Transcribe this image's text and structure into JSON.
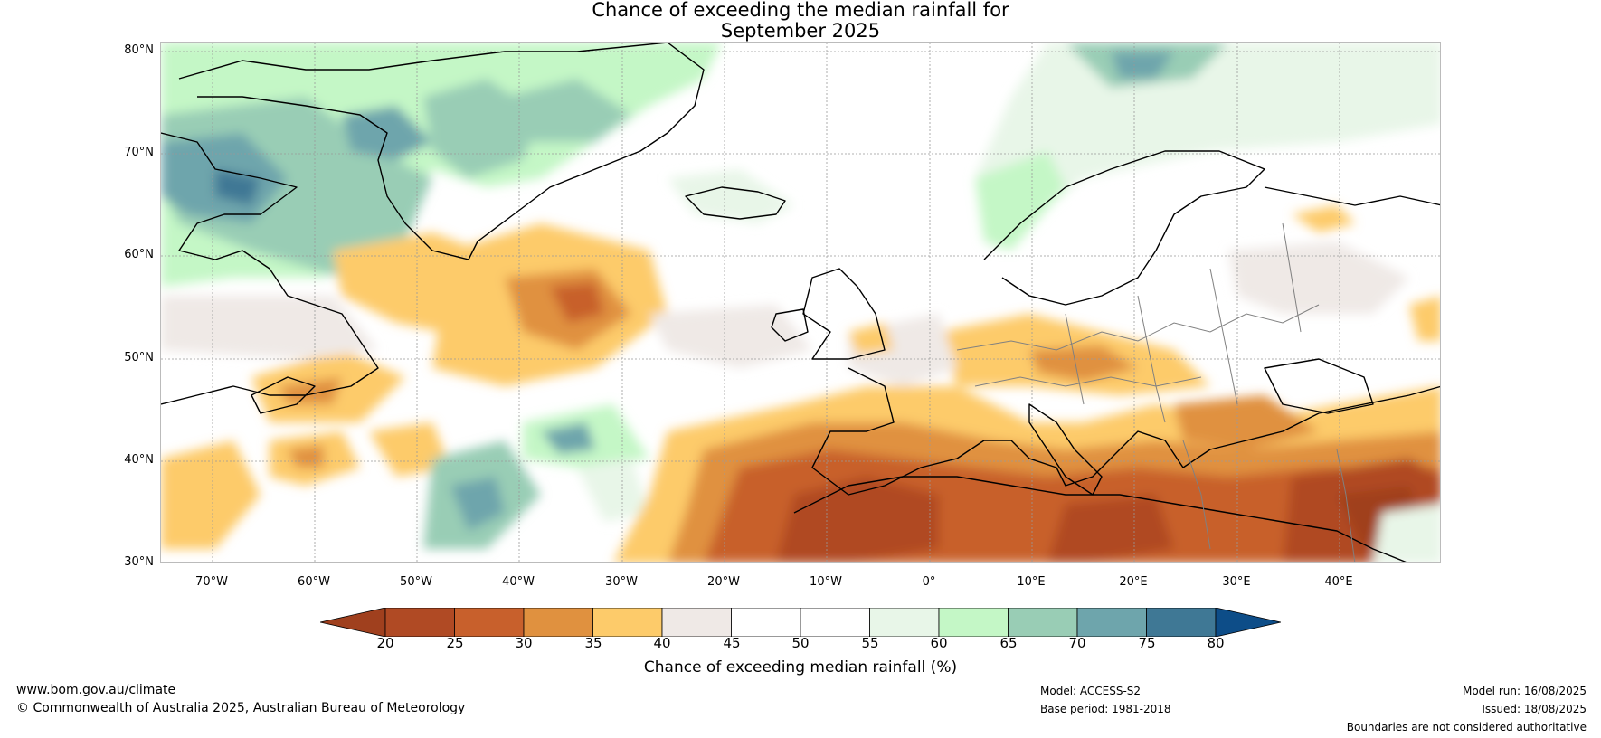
{
  "title": {
    "line1": "Chance of exceeding the median rainfall for",
    "line2": "September 2025"
  },
  "map": {
    "lat_labels": [
      "80°N",
      "70°N",
      "60°N",
      "50°N",
      "40°N",
      "30°N"
    ],
    "lon_labels": [
      "70°W",
      "60°W",
      "50°W",
      "40°W",
      "30°W",
      "20°W",
      "10°W",
      "0°",
      "10°E",
      "20°E",
      "30°E",
      "40°E"
    ],
    "lat_range": [
      30,
      81
    ],
    "lon_range": [
      -75,
      50
    ],
    "land_outline_color": "#000000",
    "border_color": "#808080"
  },
  "colorbar": {
    "ticks": [
      "20",
      "25",
      "30",
      "35",
      "40",
      "45",
      "50",
      "55",
      "60",
      "65",
      "70",
      "75",
      "80"
    ],
    "colors": [
      "#a0401e",
      "#b04a24",
      "#c8602c",
      "#e0913f",
      "#fdcb6a",
      "#efe9e6",
      "#ffffff",
      "#ffffff",
      "#e8f6e8",
      "#c4f7c6",
      "#99cdb5",
      "#6ea5ac",
      "#3f7895",
      "#0d4d88"
    ],
    "label": "Chance of exceeding median rainfall (%)"
  },
  "footer": {
    "website": "www.bom.gov.au/climate",
    "copyright": "© Commonwealth of Australia 2025, Australian Bureau of Meteorology",
    "model": "Model: ACCESS-S2",
    "base_period": "Base period: 1981-2018",
    "model_run": "Model run: 16/08/2025",
    "issued": "Issued: 18/08/2025",
    "disclaimer": "Boundaries are not considered authoritative"
  }
}
